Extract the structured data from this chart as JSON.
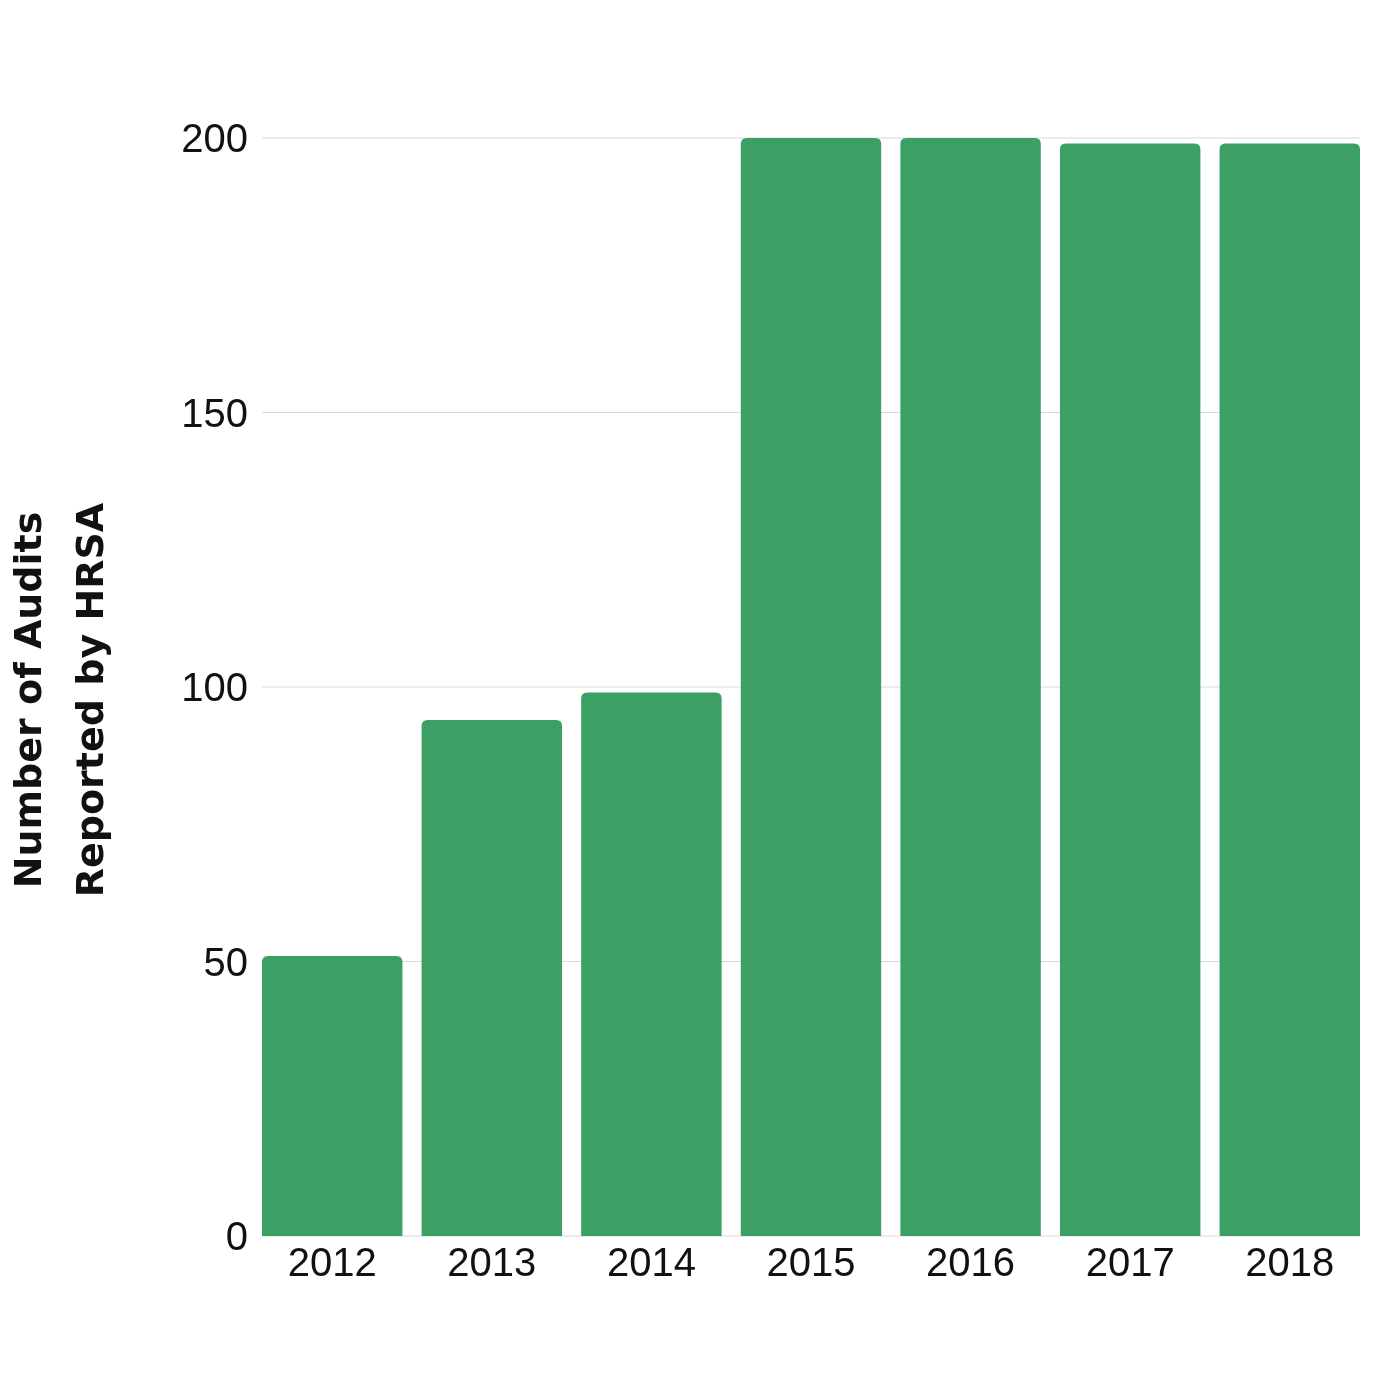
{
  "chart_data": {
    "type": "bar",
    "ylabel": "Number of Audits\nReported by HRSA",
    "categories": [
      "2012",
      "2013",
      "2014",
      "2015",
      "2016",
      "2017",
      "2018"
    ],
    "values": [
      51,
      94,
      99,
      200,
      200,
      199,
      199
    ],
    "color": "#3ca065",
    "ylim": [
      0,
      200
    ],
    "yticks": [
      0,
      50,
      100,
      150,
      200
    ],
    "grid": "y"
  }
}
